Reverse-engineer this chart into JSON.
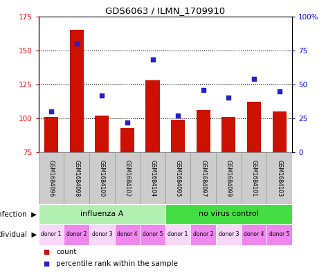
{
  "title": "GDS6063 / ILMN_1709910",
  "samples": [
    "GSM1684096",
    "GSM1684098",
    "GSM1684100",
    "GSM1684102",
    "GSM1684104",
    "GSM1684095",
    "GSM1684097",
    "GSM1684099",
    "GSM1684101",
    "GSM1684103"
  ],
  "counts": [
    101,
    165,
    102,
    93,
    128,
    99,
    106,
    101,
    112,
    105
  ],
  "percentile_ranks": [
    30,
    80,
    42,
    22,
    68,
    27,
    46,
    40,
    54,
    45
  ],
  "ymin": 75,
  "ymax": 175,
  "yticks": [
    75,
    100,
    125,
    150,
    175
  ],
  "right_yticks": [
    0,
    25,
    50,
    75,
    100
  ],
  "right_yticklabels": [
    "0",
    "25",
    "50",
    "75",
    "100%"
  ],
  "infection_groups": [
    {
      "label": "influenza A",
      "start": 0,
      "end": 5,
      "color": "#b2f0b2"
    },
    {
      "label": "no virus control",
      "start": 5,
      "end": 10,
      "color": "#44dd44"
    }
  ],
  "individual_labels": [
    "donor 1",
    "donor 2",
    "donor 3",
    "donor 4",
    "donor 5",
    "donor 1",
    "donor 2",
    "donor 3",
    "donor 4",
    "donor 5"
  ],
  "individual_colors": [
    "#f8d8f8",
    "#ee88ee",
    "#f8d8f8",
    "#ee88ee",
    "#ee88ee",
    "#f8d8f8",
    "#ee88ee",
    "#f8d8f8",
    "#ee88ee",
    "#ee88ee"
  ],
  "bar_color": "#cc1100",
  "dot_color": "#2222cc",
  "bar_width": 0.55,
  "background_color": "#ffffff",
  "sample_bg_color": "#cccccc",
  "sample_border_color": "#999999"
}
